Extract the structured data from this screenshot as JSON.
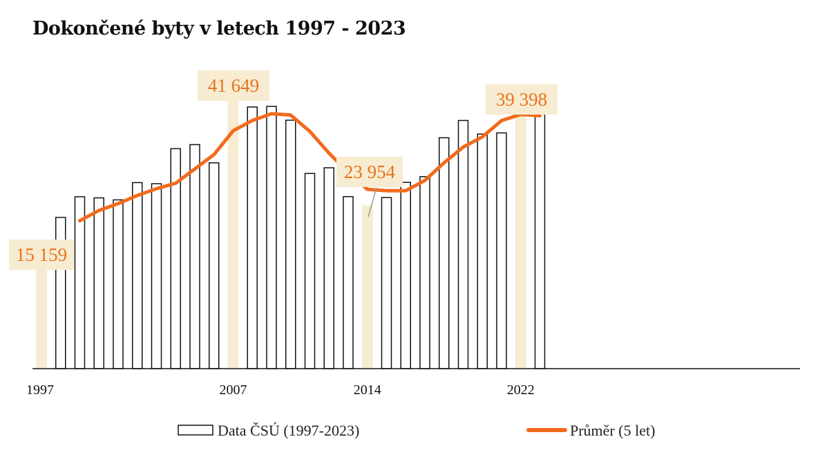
{
  "chart_data": {
    "type": "bar",
    "title": "Dokončené byty v letech 1997 - 2023",
    "x": [
      1997,
      1998,
      1999,
      2000,
      2001,
      2002,
      2003,
      2004,
      2005,
      2006,
      2007,
      2008,
      2009,
      2010,
      2011,
      2012,
      2013,
      2014,
      2015,
      2016,
      2017,
      2018,
      2019,
      2020,
      2021,
      2022,
      2023
    ],
    "series": [
      {
        "name": "Data ČSÚ (1997-2023)",
        "kind": "bar",
        "values": [
          15159,
          22183,
          25207,
          25052,
          24758,
          27291,
          27127,
          32268,
          32863,
          30190,
          41649,
          38380,
          38473,
          36442,
          28630,
          29467,
          25238,
          23954,
          25095,
          27322,
          28162,
          33868,
          36406,
          34412,
          34581,
          39398,
          38017
        ]
      },
      {
        "name": "Průměr (5 let)",
        "kind": "line",
        "x": [
          1999,
          2000,
          2001,
          2002,
          2003,
          2004,
          2005,
          2006,
          2007,
          2008,
          2009,
          2010,
          2011,
          2012,
          2013,
          2014,
          2015,
          2016,
          2017,
          2018,
          2019,
          2020,
          2021,
          2022,
          2023
        ],
        "values": [
          21700,
          23200,
          24200,
          25400,
          26400,
          27200,
          29300,
          31400,
          34900,
          36400,
          37400,
          37200,
          34800,
          31600,
          28800,
          26300,
          26100,
          26100,
          27600,
          30200,
          32500,
          34000,
          36400,
          37300,
          37100
        ]
      }
    ],
    "highlight_years": [
      1997,
      2007,
      2014,
      2022
    ],
    "annotations": [
      {
        "year": 1997,
        "label": "15 159"
      },
      {
        "year": 2007,
        "label": "41 649"
      },
      {
        "year": 2014,
        "label": "23 954"
      },
      {
        "year": 2022,
        "label": "39 398"
      }
    ],
    "x_tick_labels": [
      "1997",
      "2007",
      "2014",
      "2022"
    ],
    "ylim": [
      0,
      45000
    ],
    "grid": false,
    "legend_position": "bottom",
    "colors": {
      "line": "#f26b1d",
      "highlight": "#f7ecd1",
      "annotation_text": "#e8731e",
      "annotation_bg": "#f7ecd1",
      "bar_stroke": "#111111"
    }
  },
  "legend": {
    "bars_label": "Data ČSÚ (1997-2023)",
    "line_label": "Průměr (5 let)"
  }
}
